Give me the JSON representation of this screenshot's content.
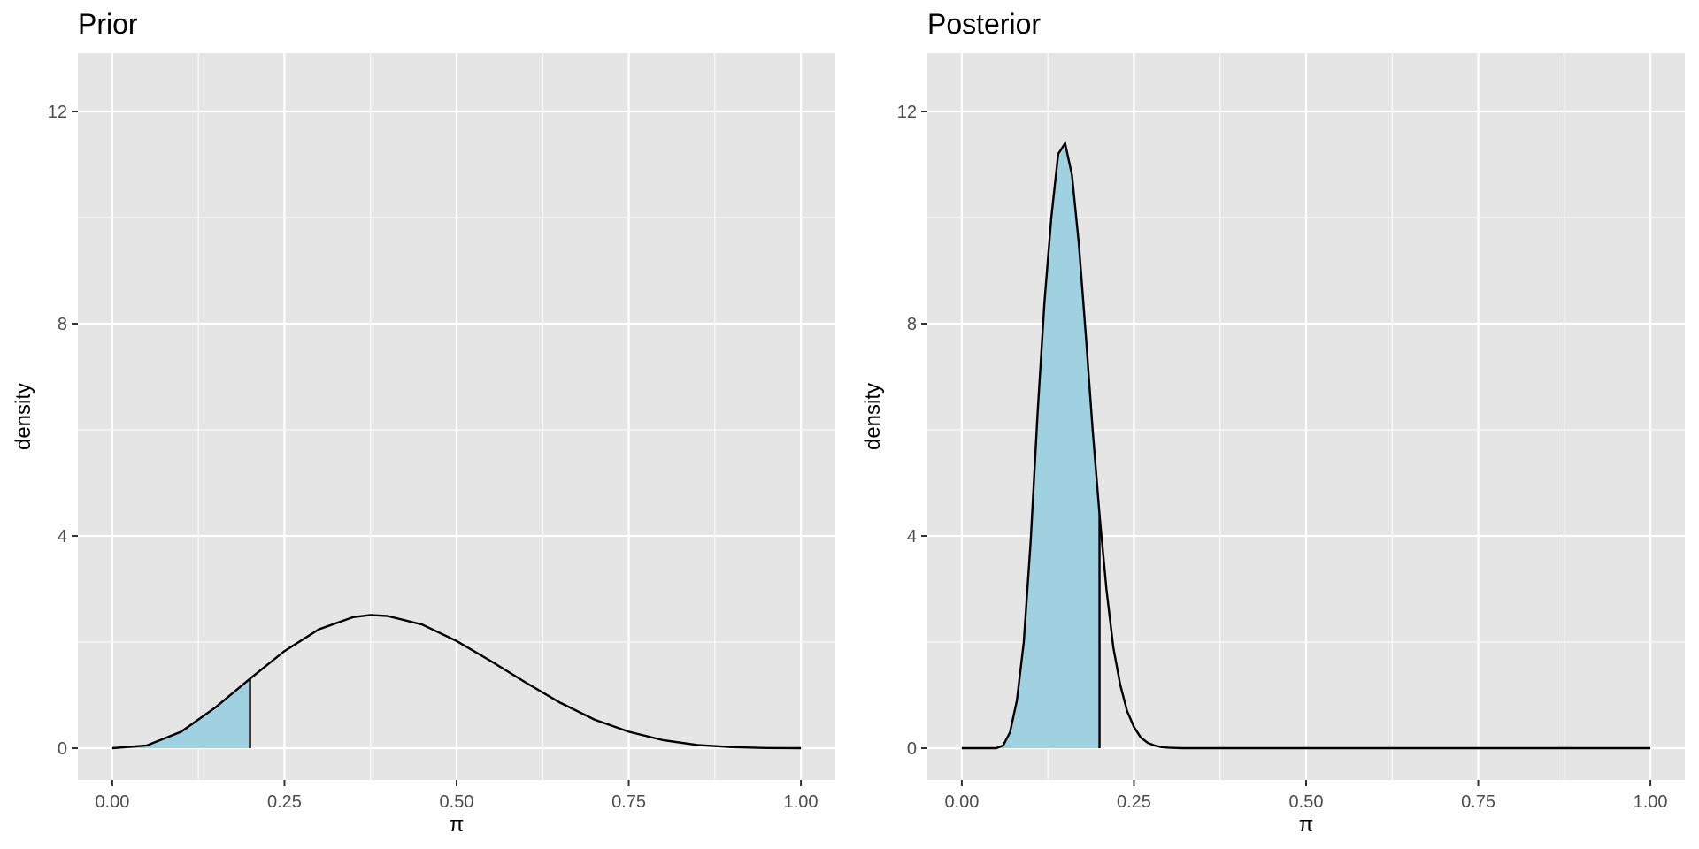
{
  "colors": {
    "panel_background": "#e5e5e5",
    "grid_line": "#ffffff",
    "fill": "#a0d1e1",
    "curve": "#000000",
    "tick_label": "#4d4d4d"
  },
  "chart_data": [
    {
      "type": "area",
      "title": "Prior",
      "xlabel": "π",
      "ylabel": "density",
      "xlim": [
        -0.05,
        1.05
      ],
      "ylim": [
        -0.6,
        13.1
      ],
      "x_ticks": [
        0,
        0.25,
        0.5,
        0.75,
        1
      ],
      "x_tick_labels": [
        "0.00",
        "0.25",
        "0.50",
        "0.75",
        "1.00"
      ],
      "y_ticks": [
        0,
        4,
        8,
        12
      ],
      "y_tick_labels": [
        "0",
        "4",
        "8",
        "12"
      ],
      "grid": true,
      "shaded_region": [
        0,
        0.2
      ],
      "marker_line_x": 0.2,
      "series": [
        {
          "x": [
            0,
            0.05,
            0.1,
            0.15,
            0.2,
            0.25,
            0.3,
            0.35,
            0.375,
            0.4,
            0.45,
            0.5,
            0.55,
            0.6,
            0.65,
            0.7,
            0.75,
            0.8,
            0.85,
            0.9,
            0.95,
            1
          ],
          "values": [
            0,
            0.05,
            0.31,
            0.77,
            1.31,
            1.83,
            2.24,
            2.47,
            2.51,
            2.49,
            2.33,
            2.02,
            1.64,
            1.24,
            0.86,
            0.54,
            0.31,
            0.15,
            0.06,
            0.02,
            0.003,
            0
          ]
        }
      ]
    },
    {
      "type": "area",
      "title": "Posterior",
      "xlabel": "π",
      "ylabel": "density",
      "xlim": [
        -0.05,
        1.05
      ],
      "ylim": [
        -0.6,
        13.1
      ],
      "x_ticks": [
        0,
        0.25,
        0.5,
        0.75,
        1
      ],
      "x_tick_labels": [
        "0.00",
        "0.25",
        "0.50",
        "0.75",
        "1.00"
      ],
      "y_ticks": [
        0,
        4,
        8,
        12
      ],
      "y_tick_labels": [
        "0",
        "4",
        "8",
        "12"
      ],
      "grid": true,
      "shaded_region": [
        0,
        0.2
      ],
      "marker_line_x": 0.2,
      "series": [
        {
          "x": [
            0,
            0.05,
            0.06,
            0.07,
            0.08,
            0.09,
            0.1,
            0.11,
            0.12,
            0.13,
            0.14,
            0.15,
            0.16,
            0.17,
            0.18,
            0.19,
            0.2,
            0.21,
            0.22,
            0.23,
            0.24,
            0.25,
            0.26,
            0.27,
            0.28,
            0.29,
            0.3,
            0.32,
            0.35,
            0.4,
            0.5,
            1
          ],
          "values": [
            0,
            0,
            0.05,
            0.3,
            0.9,
            2.0,
            3.9,
            6.3,
            8.4,
            10.0,
            11.2,
            11.4,
            10.8,
            9.5,
            7.8,
            6.0,
            4.4,
            3.0,
            1.9,
            1.2,
            0.7,
            0.4,
            0.2,
            0.1,
            0.05,
            0.02,
            0.01,
            0,
            0,
            0,
            0,
            0
          ]
        }
      ]
    }
  ]
}
